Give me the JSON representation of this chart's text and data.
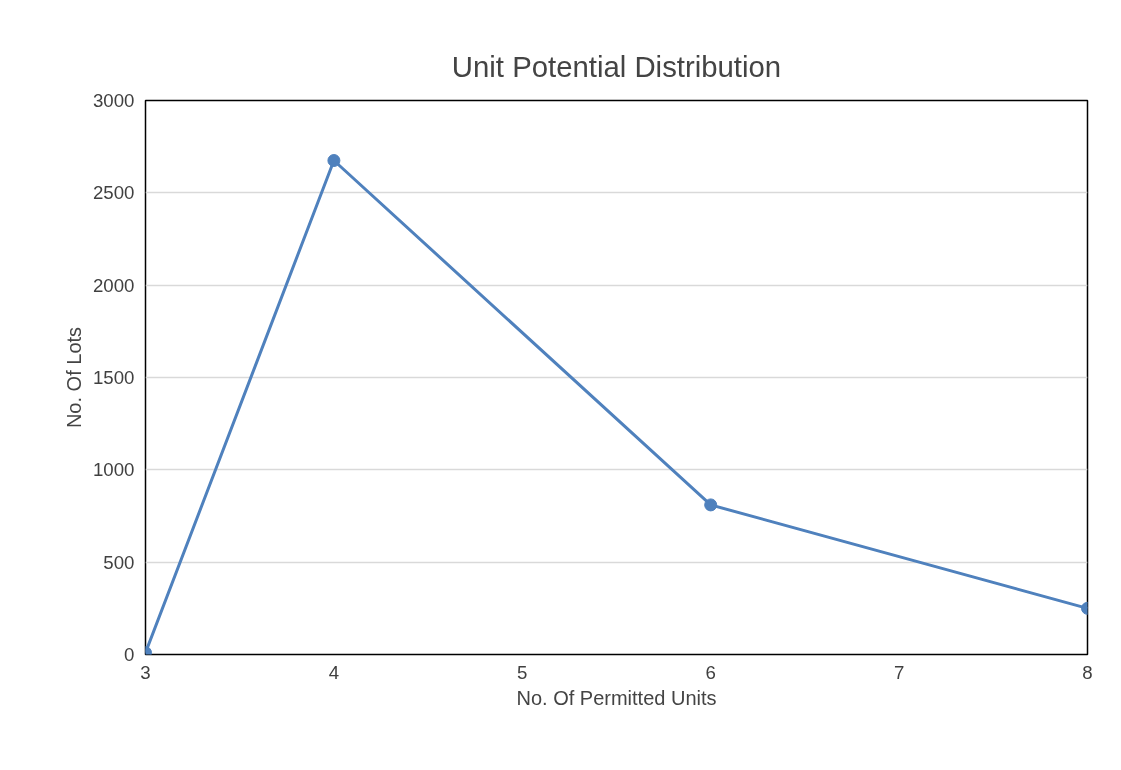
{
  "chart_data": {
    "type": "line",
    "title": "Unit Potential Distribution",
    "xlabel": "No. Of Permitted Units",
    "ylabel": "No. Of Lots",
    "x": [
      3,
      4,
      6,
      8
    ],
    "series": [
      {
        "color": "#4f81bd",
        "values": [
          10,
          2675,
          810,
          250
        ]
      }
    ],
    "xlim": [
      3,
      8
    ],
    "xticks": [
      3,
      4,
      5,
      6,
      7,
      8
    ],
    "ylim": [
      0,
      3000
    ],
    "yticks": [
      0,
      500,
      1000,
      1500,
      2000,
      2500,
      3000
    ],
    "grid": "y",
    "marker": "circle",
    "line_style": "solid"
  }
}
